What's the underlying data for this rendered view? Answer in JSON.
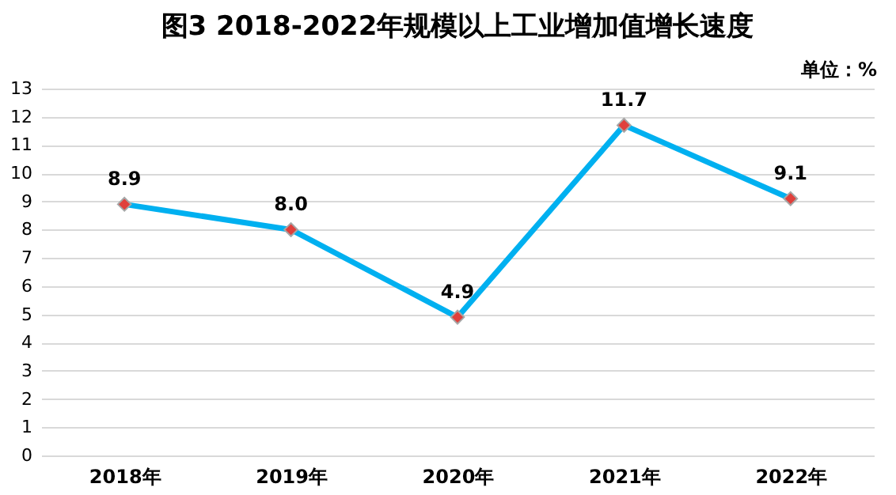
{
  "chart_data": {
    "type": "line",
    "title": "图3  2018-2022年规模以上工业增加值增长速度",
    "annotations": [
      "单位：%"
    ],
    "categories": [
      "2018年",
      "2019年",
      "2020年",
      "2021年",
      "2022年"
    ],
    "series": [
      {
        "color": "#00b0f0",
        "values": [
          8.9,
          8.0,
          4.9,
          11.7,
          9.1
        ]
      }
    ],
    "value_labels": [
      "8.9",
      "8.0",
      "4.9",
      "11.7",
      "9.1"
    ],
    "ylim": [
      0,
      13
    ],
    "yticks": [
      0,
      1,
      2,
      3,
      4,
      5,
      6,
      7,
      8,
      9,
      10,
      11,
      12,
      13
    ],
    "grid": "y",
    "marker": "diamond",
    "line_style": "solid"
  }
}
